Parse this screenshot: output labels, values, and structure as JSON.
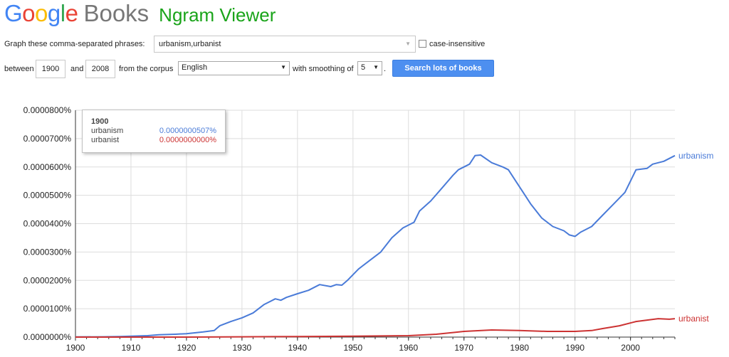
{
  "header": {
    "logo_google": [
      "G",
      "o",
      "o",
      "g",
      "l",
      "e"
    ],
    "logo_books": "Books",
    "title": "Ngram Viewer"
  },
  "colors": {
    "google": [
      "#4285f4",
      "#ea4335",
      "#fbbc05",
      "#4285f4",
      "#34a853",
      "#ea4335"
    ],
    "ngram_title": "#1aa41a",
    "series_urbanism": "#4a7bd8",
    "series_urbanist": "#cc3333",
    "button": "#4d8ff0"
  },
  "query": {
    "phrases_label": "Graph these comma-separated phrases:",
    "phrases_value": "urbanism,urbanist",
    "case_insensitive_label": "case-insensitive",
    "case_insensitive_checked": false,
    "between_label": "between",
    "start_year": "1900",
    "and_label": "and",
    "end_year": "2008",
    "corpus_label": "from the corpus",
    "corpus_value": "English",
    "smoothing_label": "with smoothing of",
    "smoothing_value": "5",
    "period": ".",
    "search_button": "Search lots of books"
  },
  "tooltip": {
    "year": "1900",
    "rows": [
      {
        "name": "urbanism",
        "value": "0.0000000507%"
      },
      {
        "name": "urbanist",
        "value": "0.0000000000%"
      }
    ]
  },
  "chart_data": {
    "type": "line",
    "x_range": [
      1900,
      2008
    ],
    "y_range": [
      0,
      8e-07
    ],
    "x_ticks": [
      "1900",
      "1910",
      "1920",
      "1930",
      "1940",
      "1950",
      "1960",
      "1970",
      "1980",
      "1990",
      "2000"
    ],
    "y_ticks": [
      "0.0000000%",
      "0.0000100%",
      "0.0000200%",
      "0.0000300%",
      "0.0000400%",
      "0.0000500%",
      "0.0000600%",
      "0.0000700%",
      "0.0000800%"
    ],
    "grid": true,
    "series": [
      {
        "name": "urbanism",
        "points": [
          [
            1900,
            5e-10
          ],
          [
            1905,
            1e-09
          ],
          [
            1908,
            2e-09
          ],
          [
            1910,
            3e-09
          ],
          [
            1913,
            5e-09
          ],
          [
            1915,
            8e-09
          ],
          [
            1918,
            1e-08
          ],
          [
            1920,
            1.2e-08
          ],
          [
            1923,
            1.8e-08
          ],
          [
            1925,
            2.3e-08
          ],
          [
            1926,
            4e-08
          ],
          [
            1928,
            5.5e-08
          ],
          [
            1930,
            6.8e-08
          ],
          [
            1932,
            8.5e-08
          ],
          [
            1934,
            1.15e-07
          ],
          [
            1936,
            1.35e-07
          ],
          [
            1937,
            1.3e-07
          ],
          [
            1938,
            1.4e-07
          ],
          [
            1940,
            1.53e-07
          ],
          [
            1942,
            1.65e-07
          ],
          [
            1944,
            1.85e-07
          ],
          [
            1946,
            1.78e-07
          ],
          [
            1947,
            1.85e-07
          ],
          [
            1948,
            1.83e-07
          ],
          [
            1949,
            2e-07
          ],
          [
            1951,
            2.4e-07
          ],
          [
            1953,
            2.7e-07
          ],
          [
            1955,
            3e-07
          ],
          [
            1957,
            3.5e-07
          ],
          [
            1959,
            3.85e-07
          ],
          [
            1961,
            4.05e-07
          ],
          [
            1962,
            4.45e-07
          ],
          [
            1964,
            4.8e-07
          ],
          [
            1966,
            5.25e-07
          ],
          [
            1968,
            5.7e-07
          ],
          [
            1969,
            5.9e-07
          ],
          [
            1971,
            6.1e-07
          ],
          [
            1972,
            6.4e-07
          ],
          [
            1973,
            6.42e-07
          ],
          [
            1975,
            6.15e-07
          ],
          [
            1977,
            6e-07
          ],
          [
            1978,
            5.9e-07
          ],
          [
            1979,
            5.6e-07
          ],
          [
            1981,
            5e-07
          ],
          [
            1982,
            4.7e-07
          ],
          [
            1984,
            4.2e-07
          ],
          [
            1986,
            3.9e-07
          ],
          [
            1988,
            3.75e-07
          ],
          [
            1989,
            3.6e-07
          ],
          [
            1990,
            3.55e-07
          ],
          [
            1991,
            3.7e-07
          ],
          [
            1993,
            3.9e-07
          ],
          [
            1995,
            4.3e-07
          ],
          [
            1997,
            4.7e-07
          ],
          [
            1999,
            5.1e-07
          ],
          [
            2001,
            5.9e-07
          ],
          [
            2003,
            5.95e-07
          ],
          [
            2004,
            6.1e-07
          ],
          [
            2006,
            6.2e-07
          ],
          [
            2008,
            6.4e-07
          ]
        ]
      },
      {
        "name": "urbanist",
        "points": [
          [
            1900,
            0
          ],
          [
            1910,
            0
          ],
          [
            1920,
            0
          ],
          [
            1930,
            1e-09
          ],
          [
            1940,
            2e-09
          ],
          [
            1950,
            3e-09
          ],
          [
            1960,
            5e-09
          ],
          [
            1965,
            1e-08
          ],
          [
            1970,
            2e-08
          ],
          [
            1975,
            2.5e-08
          ],
          [
            1980,
            2.3e-08
          ],
          [
            1985,
            2e-08
          ],
          [
            1990,
            2e-08
          ],
          [
            1993,
            2.3e-08
          ],
          [
            1995,
            3e-08
          ],
          [
            1998,
            4e-08
          ],
          [
            2001,
            5.5e-08
          ],
          [
            2005,
            6.5e-08
          ],
          [
            2007,
            6.3e-08
          ],
          [
            2008,
            6.5e-08
          ]
        ]
      }
    ]
  }
}
